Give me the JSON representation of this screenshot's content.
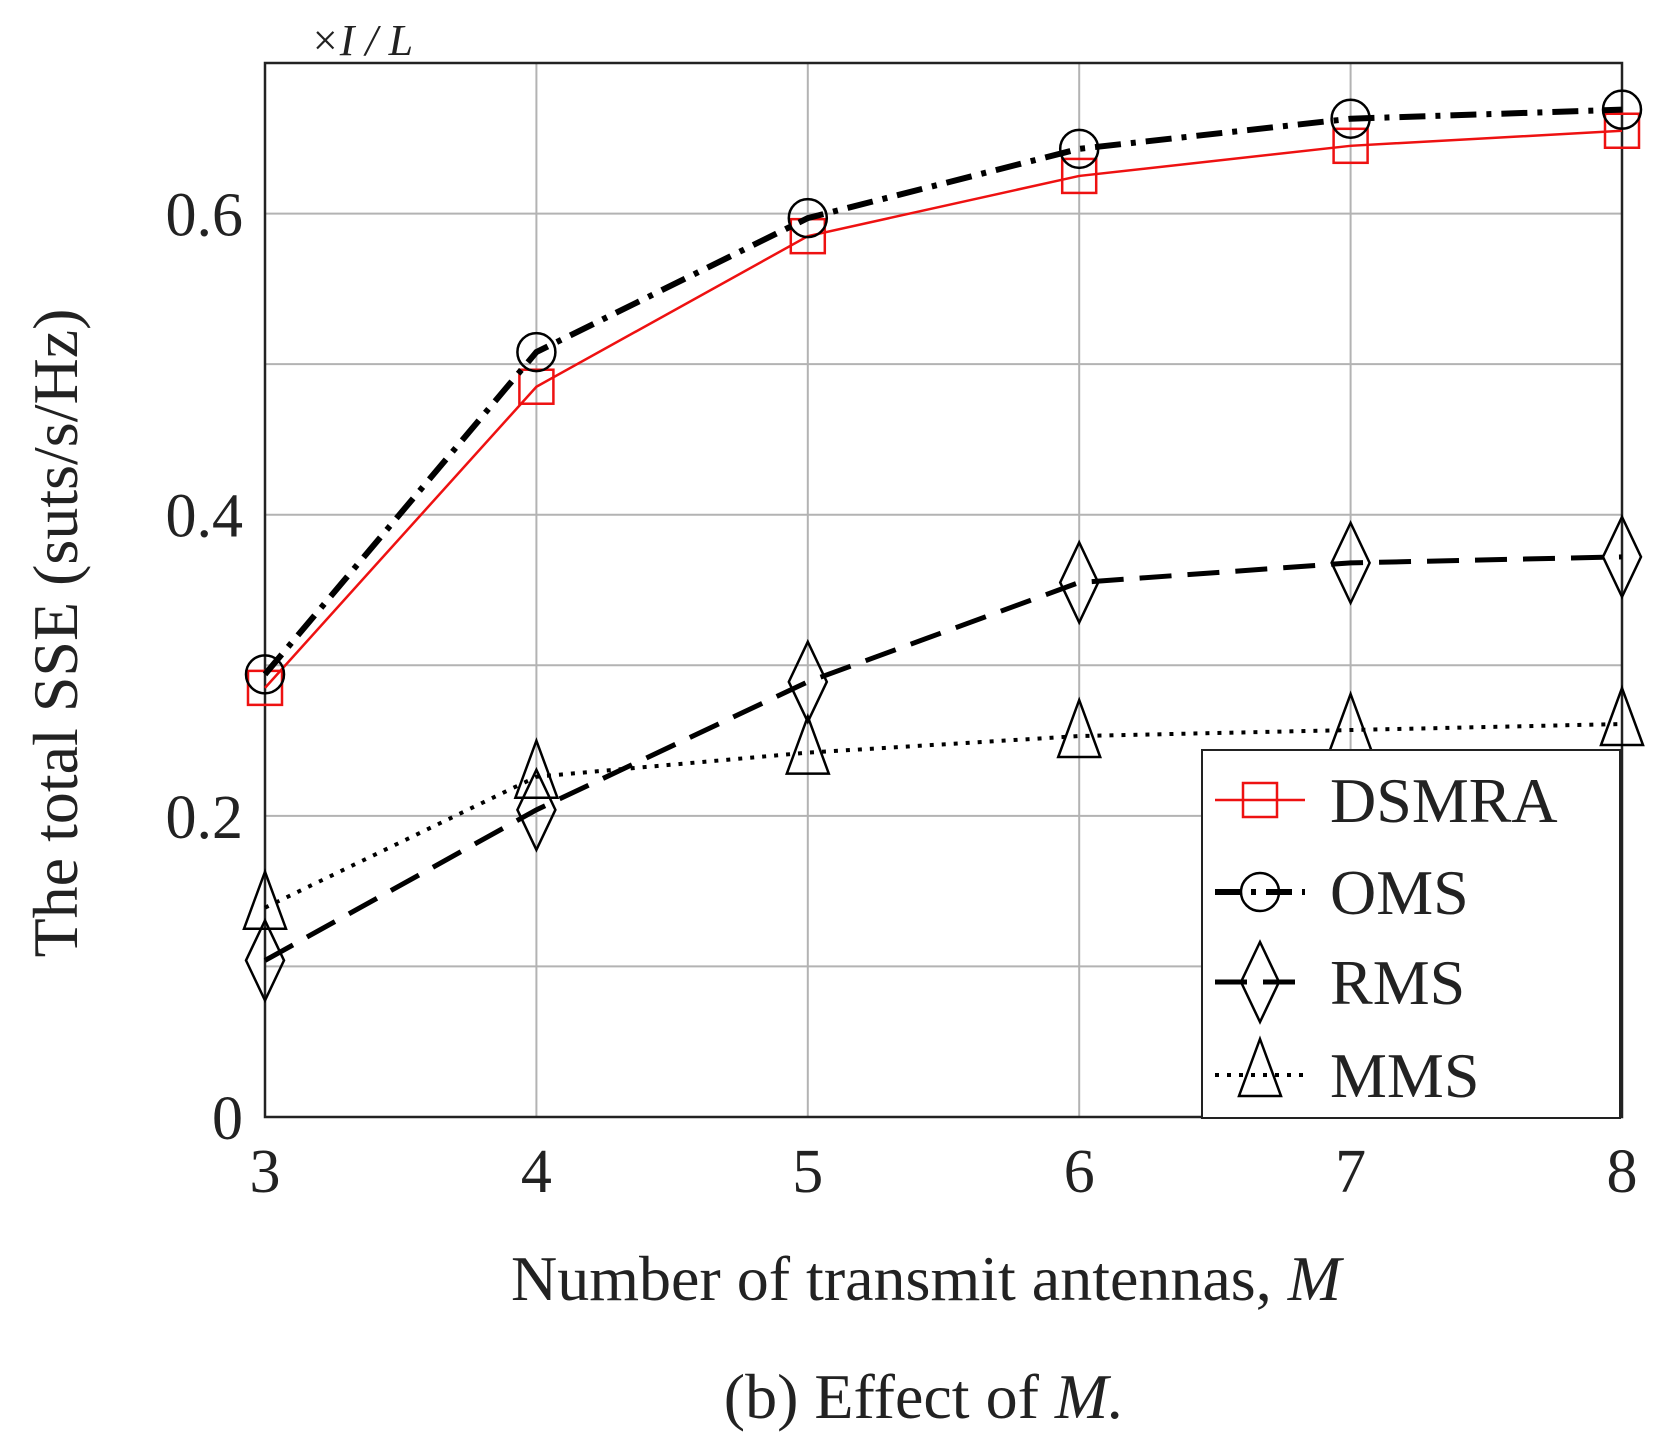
{
  "chart_data": {
    "type": "line",
    "axis_multiplier": "×I / L",
    "xlabel": "Number of transmit antennas, ",
    "xlabel_var": "M",
    "ylabel": "The total SSE (suts/s/Hz)",
    "caption": "(b) Effect of ",
    "caption_var": "M.",
    "x": [
      3,
      4,
      5,
      6,
      7,
      8
    ],
    "xlim": [
      3,
      8
    ],
    "ylim": [
      0,
      0.7
    ],
    "xticks": [
      "3",
      "4",
      "5",
      "6",
      "7",
      "8"
    ],
    "yticks": [
      {
        "value": 0,
        "label": "0"
      },
      {
        "value": 0.2,
        "label": "0.2"
      },
      {
        "value": 0.4,
        "label": "0.4"
      },
      {
        "value": 0.6,
        "label": "0.6"
      }
    ],
    "grid_values": [
      0.1,
      0.2,
      0.3,
      0.4,
      0.5,
      0.6
    ],
    "grid": true,
    "legend_position": "bottom-right",
    "series": [
      {
        "name": "DSMRA",
        "values": [
          0.285,
          0.485,
          0.585,
          0.625,
          0.645,
          0.655
        ],
        "color": "#ee1111",
        "dash": "solid",
        "marker": "square"
      },
      {
        "name": "OMS",
        "values": [
          0.294,
          0.508,
          0.597,
          0.643,
          0.663,
          0.669
        ],
        "color": "#000000",
        "dash": "dashdot",
        "marker": "circle"
      },
      {
        "name": "RMS",
        "values": [
          0.104,
          0.204,
          0.289,
          0.355,
          0.368,
          0.372
        ],
        "color": "#000000",
        "dash": "dashed",
        "marker": "diamond"
      },
      {
        "name": "MMS",
        "values": [
          0.139,
          0.226,
          0.242,
          0.253,
          0.257,
          0.261
        ],
        "color": "#000000",
        "dash": "dotted",
        "marker": "triangle"
      }
    ]
  }
}
